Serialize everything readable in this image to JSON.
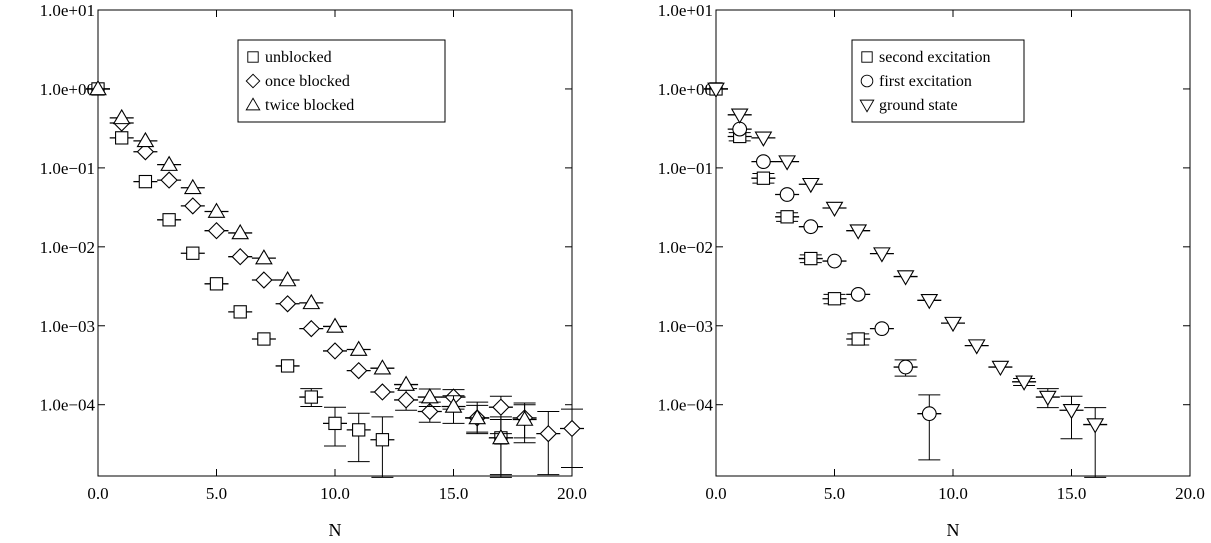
{
  "chart_data": [
    {
      "type": "scatter",
      "xlabel": "N",
      "ylabel": "",
      "xlim": [
        0,
        20
      ],
      "ylim": [
        1.25e-05,
        10
      ],
      "yscale": "log",
      "x_ticks": [
        0,
        5,
        10,
        15,
        20
      ],
      "x_tick_labels": [
        "0.0",
        "5.0",
        "10.0",
        "15.0",
        "20.0"
      ],
      "y_ticks": [
        10,
        1,
        0.1,
        0.01,
        0.001,
        0.0001
      ],
      "y_tick_labels": [
        "1.0e+01",
        "1.0e+00",
        "1.0e−01",
        "1.0e−02",
        "1.0e−03",
        "1.0e−04"
      ],
      "grid": false,
      "legend_position": "top-right",
      "series": [
        {
          "name": "unblocked",
          "marker": "square",
          "x": [
            0,
            1,
            2,
            3,
            4,
            5,
            6,
            7,
            8,
            9,
            10,
            11,
            12,
            17
          ],
          "y": [
            1.0,
            0.24,
            0.067,
            0.022,
            0.0083,
            0.0034,
            0.0015,
            0.00068,
            0.00031,
            0.000125,
            5.8e-05,
            4.8e-05,
            3.6e-05,
            3.8e-05
          ],
          "err_low": [
            1.0,
            0.24,
            0.067,
            0.022,
            0.0083,
            0.0034,
            0.0015,
            0.00068,
            0.00031,
            9.5e-05,
            3e-05,
            1.9e-05,
            1.2e-05,
            1.2e-05
          ],
          "err_high": [
            1.0,
            0.24,
            0.067,
            0.022,
            0.0083,
            0.0034,
            0.0015,
            0.00068,
            0.00031,
            0.00016,
            9.3e-05,
            7.8e-05,
            7e-05,
            6.5e-05
          ]
        },
        {
          "name": "once blocked",
          "marker": "diamond",
          "x": [
            1,
            2,
            3,
            4,
            5,
            6,
            7,
            8,
            9,
            10,
            11,
            12,
            13,
            14,
            15,
            16,
            17,
            18,
            19,
            20
          ],
          "y": [
            0.37,
            0.16,
            0.07,
            0.033,
            0.016,
            0.0075,
            0.0038,
            0.0019,
            0.00092,
            0.00048,
            0.00027,
            0.000145,
            0.000115,
            8.2e-05,
            0.000125,
            6.8e-05,
            9.3e-05,
            6.8e-05,
            4.3e-05,
            5e-05
          ],
          "err_low": [
            0.37,
            0.16,
            0.07,
            0.033,
            0.016,
            0.0075,
            0.0038,
            0.0019,
            0.00092,
            0.00048,
            0.00027,
            0.000145,
            8.5e-05,
            6e-05,
            8.8e-05,
            4.3e-05,
            4.3e-05,
            3.8e-05,
            1.3e-05,
            1.6e-05
          ],
          "err_high": [
            0.37,
            0.16,
            0.07,
            0.033,
            0.016,
            0.0075,
            0.0038,
            0.0019,
            0.00092,
            0.00048,
            0.00027,
            0.000145,
            0.00016,
            0.000108,
            0.000155,
            9.8e-05,
            0.000128,
            0.000105,
            8.2e-05,
            8.8e-05
          ]
        },
        {
          "name": "twice blocked",
          "marker": "triangle-up",
          "x": [
            0,
            1,
            2,
            3,
            4,
            5,
            6,
            7,
            8,
            9,
            10,
            11,
            12,
            13,
            14,
            15,
            16,
            17,
            18
          ],
          "y": [
            1.0,
            0.43,
            0.22,
            0.11,
            0.056,
            0.028,
            0.015,
            0.0072,
            0.0038,
            0.00195,
            0.00098,
            0.0005,
            0.00029,
            0.00018,
            0.000125,
            9.5e-05,
            6.8e-05,
            3.8e-05,
            6.5e-05
          ],
          "err_low": [
            1.0,
            0.43,
            0.22,
            0.11,
            0.056,
            0.028,
            0.015,
            0.0072,
            0.0038,
            0.00195,
            0.00098,
            0.0005,
            0.00029,
            0.00018,
            9.5e-05,
            5.8e-05,
            4.5e-05,
            1.3e-05,
            3.3e-05
          ],
          "err_high": [
            1.0,
            0.43,
            0.22,
            0.11,
            0.056,
            0.028,
            0.015,
            0.0072,
            0.0038,
            0.00195,
            0.00098,
            0.0005,
            0.00029,
            0.00018,
            0.000158,
            0.00013,
            0.000108,
            7e-05,
            0.0001
          ]
        }
      ]
    },
    {
      "type": "scatter",
      "xlabel": "N",
      "ylabel": "",
      "xlim": [
        0,
        20
      ],
      "ylim": [
        1.25e-05,
        10
      ],
      "yscale": "log",
      "x_ticks": [
        0,
        5,
        10,
        15,
        20
      ],
      "x_tick_labels": [
        "0.0",
        "5.0",
        "10.0",
        "15.0",
        "20.0"
      ],
      "y_ticks": [
        10,
        1,
        0.1,
        0.01,
        0.001,
        0.0001
      ],
      "y_tick_labels": [
        "1.0e+01",
        "1.0e+00",
        "1.0e−01",
        "1.0e−02",
        "1.0e−03",
        "1.0e−04"
      ],
      "grid": false,
      "legend_position": "top-right",
      "series": [
        {
          "name": "second excitation",
          "marker": "square",
          "x": [
            0,
            1,
            2,
            3,
            4,
            5,
            6
          ],
          "y": [
            1.0,
            0.25,
            0.074,
            0.024,
            0.0071,
            0.0022,
            0.00068
          ],
          "err_low": [
            1.0,
            0.22,
            0.064,
            0.021,
            0.0063,
            0.0019,
            0.00057
          ],
          "err_high": [
            1.0,
            0.28,
            0.085,
            0.027,
            0.0079,
            0.0025,
            0.00079
          ]
        },
        {
          "name": "first excitation",
          "marker": "circle",
          "x": [
            1,
            2,
            3,
            4,
            5,
            6,
            7,
            8,
            9
          ],
          "y": [
            0.31,
            0.12,
            0.046,
            0.018,
            0.0066,
            0.0025,
            0.00092,
            0.0003,
            7.7e-05
          ],
          "err_low": [
            0.31,
            0.12,
            0.046,
            0.018,
            0.0066,
            0.0025,
            0.00092,
            0.00023,
            2e-05
          ],
          "err_high": [
            0.31,
            0.12,
            0.046,
            0.018,
            0.0066,
            0.0025,
            0.00092,
            0.00037,
            0.000133
          ]
        },
        {
          "name": "ground state",
          "marker": "triangle-down",
          "x": [
            0,
            1,
            2,
            3,
            4,
            5,
            6,
            7,
            8,
            9,
            10,
            11,
            12,
            13,
            14,
            15,
            16
          ],
          "y": [
            1.0,
            0.47,
            0.24,
            0.12,
            0.062,
            0.031,
            0.016,
            0.0082,
            0.0042,
            0.0021,
            0.00108,
            0.00056,
            0.0003,
            0.000195,
            0.000125,
            8.5e-05,
            5.6e-05
          ],
          "err_low": [
            1.0,
            0.47,
            0.24,
            0.12,
            0.062,
            0.031,
            0.016,
            0.0082,
            0.0042,
            0.0021,
            0.00108,
            0.00056,
            0.0003,
            0.000175,
            9.2e-05,
            3.7e-05,
            1.2e-05
          ],
          "err_high": [
            1.0,
            0.47,
            0.24,
            0.12,
            0.062,
            0.031,
            0.016,
            0.0082,
            0.0042,
            0.0021,
            0.00108,
            0.00056,
            0.0003,
            0.000215,
            0.00016,
            0.000128,
            9.2e-05
          ]
        }
      ]
    }
  ]
}
